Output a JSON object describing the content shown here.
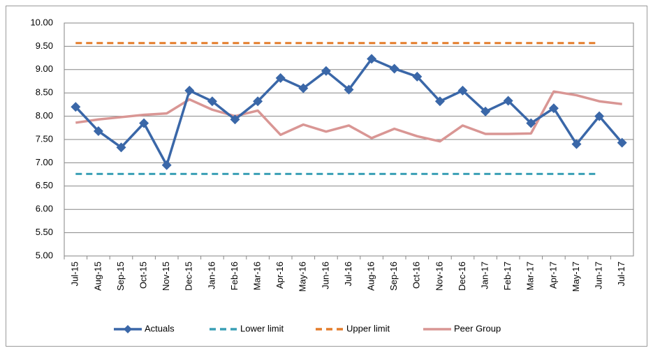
{
  "chart_data": {
    "type": "line",
    "categories": [
      "Jul-15",
      "Aug-15",
      "Sep-15",
      "Oct-15",
      "Nov-15",
      "Dec-15",
      "Jan-16",
      "Feb-16",
      "Mar-16",
      "Apr-16",
      "May-16",
      "Jun-16",
      "Jul-16",
      "Aug-16",
      "Sep-16",
      "Oct-16",
      "Nov-16",
      "Dec-16",
      "Jan-17",
      "Feb-17",
      "Mar-17",
      "Apr-17",
      "May-17",
      "Jun-17",
      "Jul-17"
    ],
    "series": [
      {
        "name": "Actuals",
        "color": "#3a67a8",
        "marker": "diamond",
        "dash": false,
        "values": [
          8.2,
          7.68,
          7.33,
          7.85,
          6.95,
          8.55,
          8.32,
          7.93,
          8.32,
          8.82,
          8.6,
          8.97,
          8.57,
          9.23,
          9.02,
          8.85,
          8.32,
          8.55,
          8.1,
          8.33,
          7.85,
          8.17,
          7.4,
          8.0,
          7.43
        ]
      },
      {
        "name": "Lower limit",
        "color": "#3a9fb5",
        "dash": true,
        "values": [
          6.76,
          6.76,
          6.76,
          6.76,
          6.76,
          6.76,
          6.76,
          6.76,
          6.76,
          6.76,
          6.76,
          6.76,
          6.76,
          6.76,
          6.76,
          6.76,
          6.76,
          6.76,
          6.76,
          6.76,
          6.76,
          6.76,
          6.76,
          6.76,
          null
        ]
      },
      {
        "name": "Upper limit",
        "color": "#e47d2b",
        "dash": true,
        "values": [
          9.57,
          9.57,
          9.57,
          9.57,
          9.57,
          9.57,
          9.57,
          9.57,
          9.57,
          9.57,
          9.57,
          9.57,
          9.57,
          9.57,
          9.57,
          9.57,
          9.57,
          9.57,
          9.57,
          9.57,
          9.57,
          9.57,
          9.57,
          9.57,
          null
        ]
      },
      {
        "name": "Peer Group",
        "color": "#d99694",
        "dash": false,
        "values": [
          7.86,
          7.93,
          7.98,
          8.03,
          8.06,
          8.36,
          8.14,
          8.0,
          8.12,
          7.6,
          7.82,
          7.67,
          7.8,
          7.53,
          7.73,
          7.57,
          7.46,
          7.8,
          7.62,
          7.62,
          7.63,
          8.53,
          8.45,
          8.32,
          8.26
        ]
      }
    ],
    "ylim": [
      5,
      10
    ],
    "yticks": [
      {
        "value": 5,
        "label": "5.00"
      },
      {
        "value": 5.5,
        "label": "5.50"
      },
      {
        "value": 6,
        "label": "6.00"
      },
      {
        "value": 6.5,
        "label": "6.50"
      },
      {
        "value": 7,
        "label": "7.00"
      },
      {
        "value": 7.5,
        "label": "7.50"
      },
      {
        "value": 8,
        "label": "8.00"
      },
      {
        "value": 8.5,
        "label": "8.50"
      },
      {
        "value": 9,
        "label": "9.00"
      },
      {
        "value": 9.5,
        "label": "9.50"
      },
      {
        "value": 10,
        "label": "10.00"
      }
    ],
    "grid": true,
    "legend": "bottom"
  }
}
